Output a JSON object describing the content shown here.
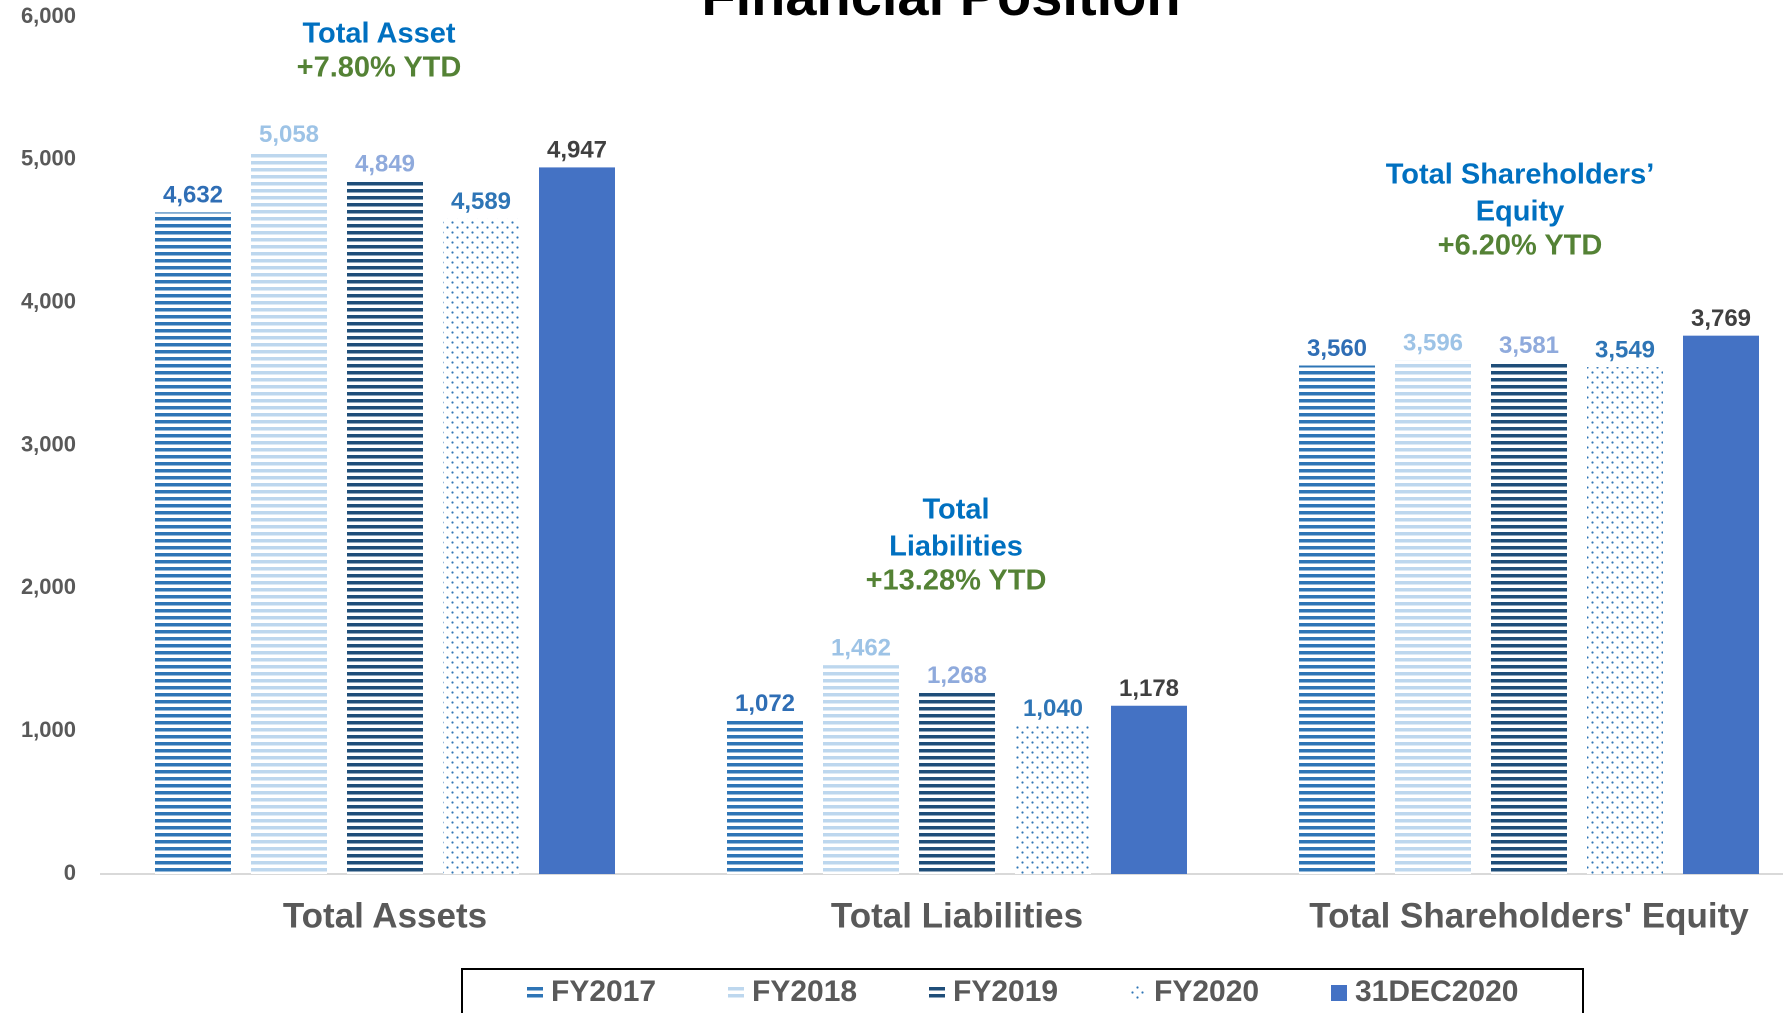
{
  "chart_data": {
    "type": "bar",
    "title": "Financial Position",
    "categories": [
      "Total Assets",
      "Total Liabilities",
      "Total Shareholders' Equity"
    ],
    "series": [
      {
        "name": "FY2017",
        "color": "#2e75b6",
        "pattern": "h-stripes",
        "label_color": "#2f6eb5",
        "values": [
          4632,
          1072,
          3560
        ],
        "value_labels": [
          "4,632",
          "1,072",
          "3,560"
        ]
      },
      {
        "name": "FY2018",
        "color": "#bdd7ee",
        "pattern": "h-stripes",
        "label_color": "#9dc3e6",
        "values": [
          5058,
          1462,
          3596
        ],
        "value_labels": [
          "5,058",
          "1,462",
          "3,596"
        ]
      },
      {
        "name": "FY2019",
        "color": "#1f4e79",
        "pattern": "h-stripes",
        "label_color": "#8faadc",
        "values": [
          4849,
          1268,
          3581
        ],
        "value_labels": [
          "4,849",
          "1,268",
          "3,581"
        ]
      },
      {
        "name": "FY2020",
        "color": "#2e75b6",
        "pattern": "dots",
        "label_color": "#2e75b6",
        "values": [
          4589,
          1040,
          3549
        ],
        "value_labels": [
          "4,589",
          "1,040",
          "3,549"
        ]
      },
      {
        "name": "31DEC2020",
        "color": "#4472c4",
        "pattern": "solid",
        "label_color": "#404040",
        "values": [
          4947,
          1178,
          3769
        ],
        "value_labels": [
          "4,947",
          "1,178",
          "3,769"
        ]
      }
    ],
    "annotations": [
      {
        "lines": [
          "Total Asset"
        ],
        "ytd": "+7.80% YTD"
      },
      {
        "lines": [
          "Total",
          "Liabilities"
        ],
        "ytd": "+13.28% YTD"
      },
      {
        "lines": [
          "Total Shareholders’",
          "Equity"
        ],
        "ytd": "+6.20% YTD"
      }
    ],
    "ylim": [
      0,
      6000
    ],
    "yticks": [
      0,
      {
        "value": 1000,
        "label": "1,000"
      },
      {
        "value": 2000,
        "label": "2,000"
      },
      {
        "value": 3000,
        "label": "3,000"
      },
      {
        "value": 4000,
        "label": "4,000"
      },
      {
        "value": 5000,
        "label": "5,000"
      },
      {
        "value": 6000,
        "label": "6,000"
      }
    ],
    "grid": false,
    "legend": "bottom"
  }
}
